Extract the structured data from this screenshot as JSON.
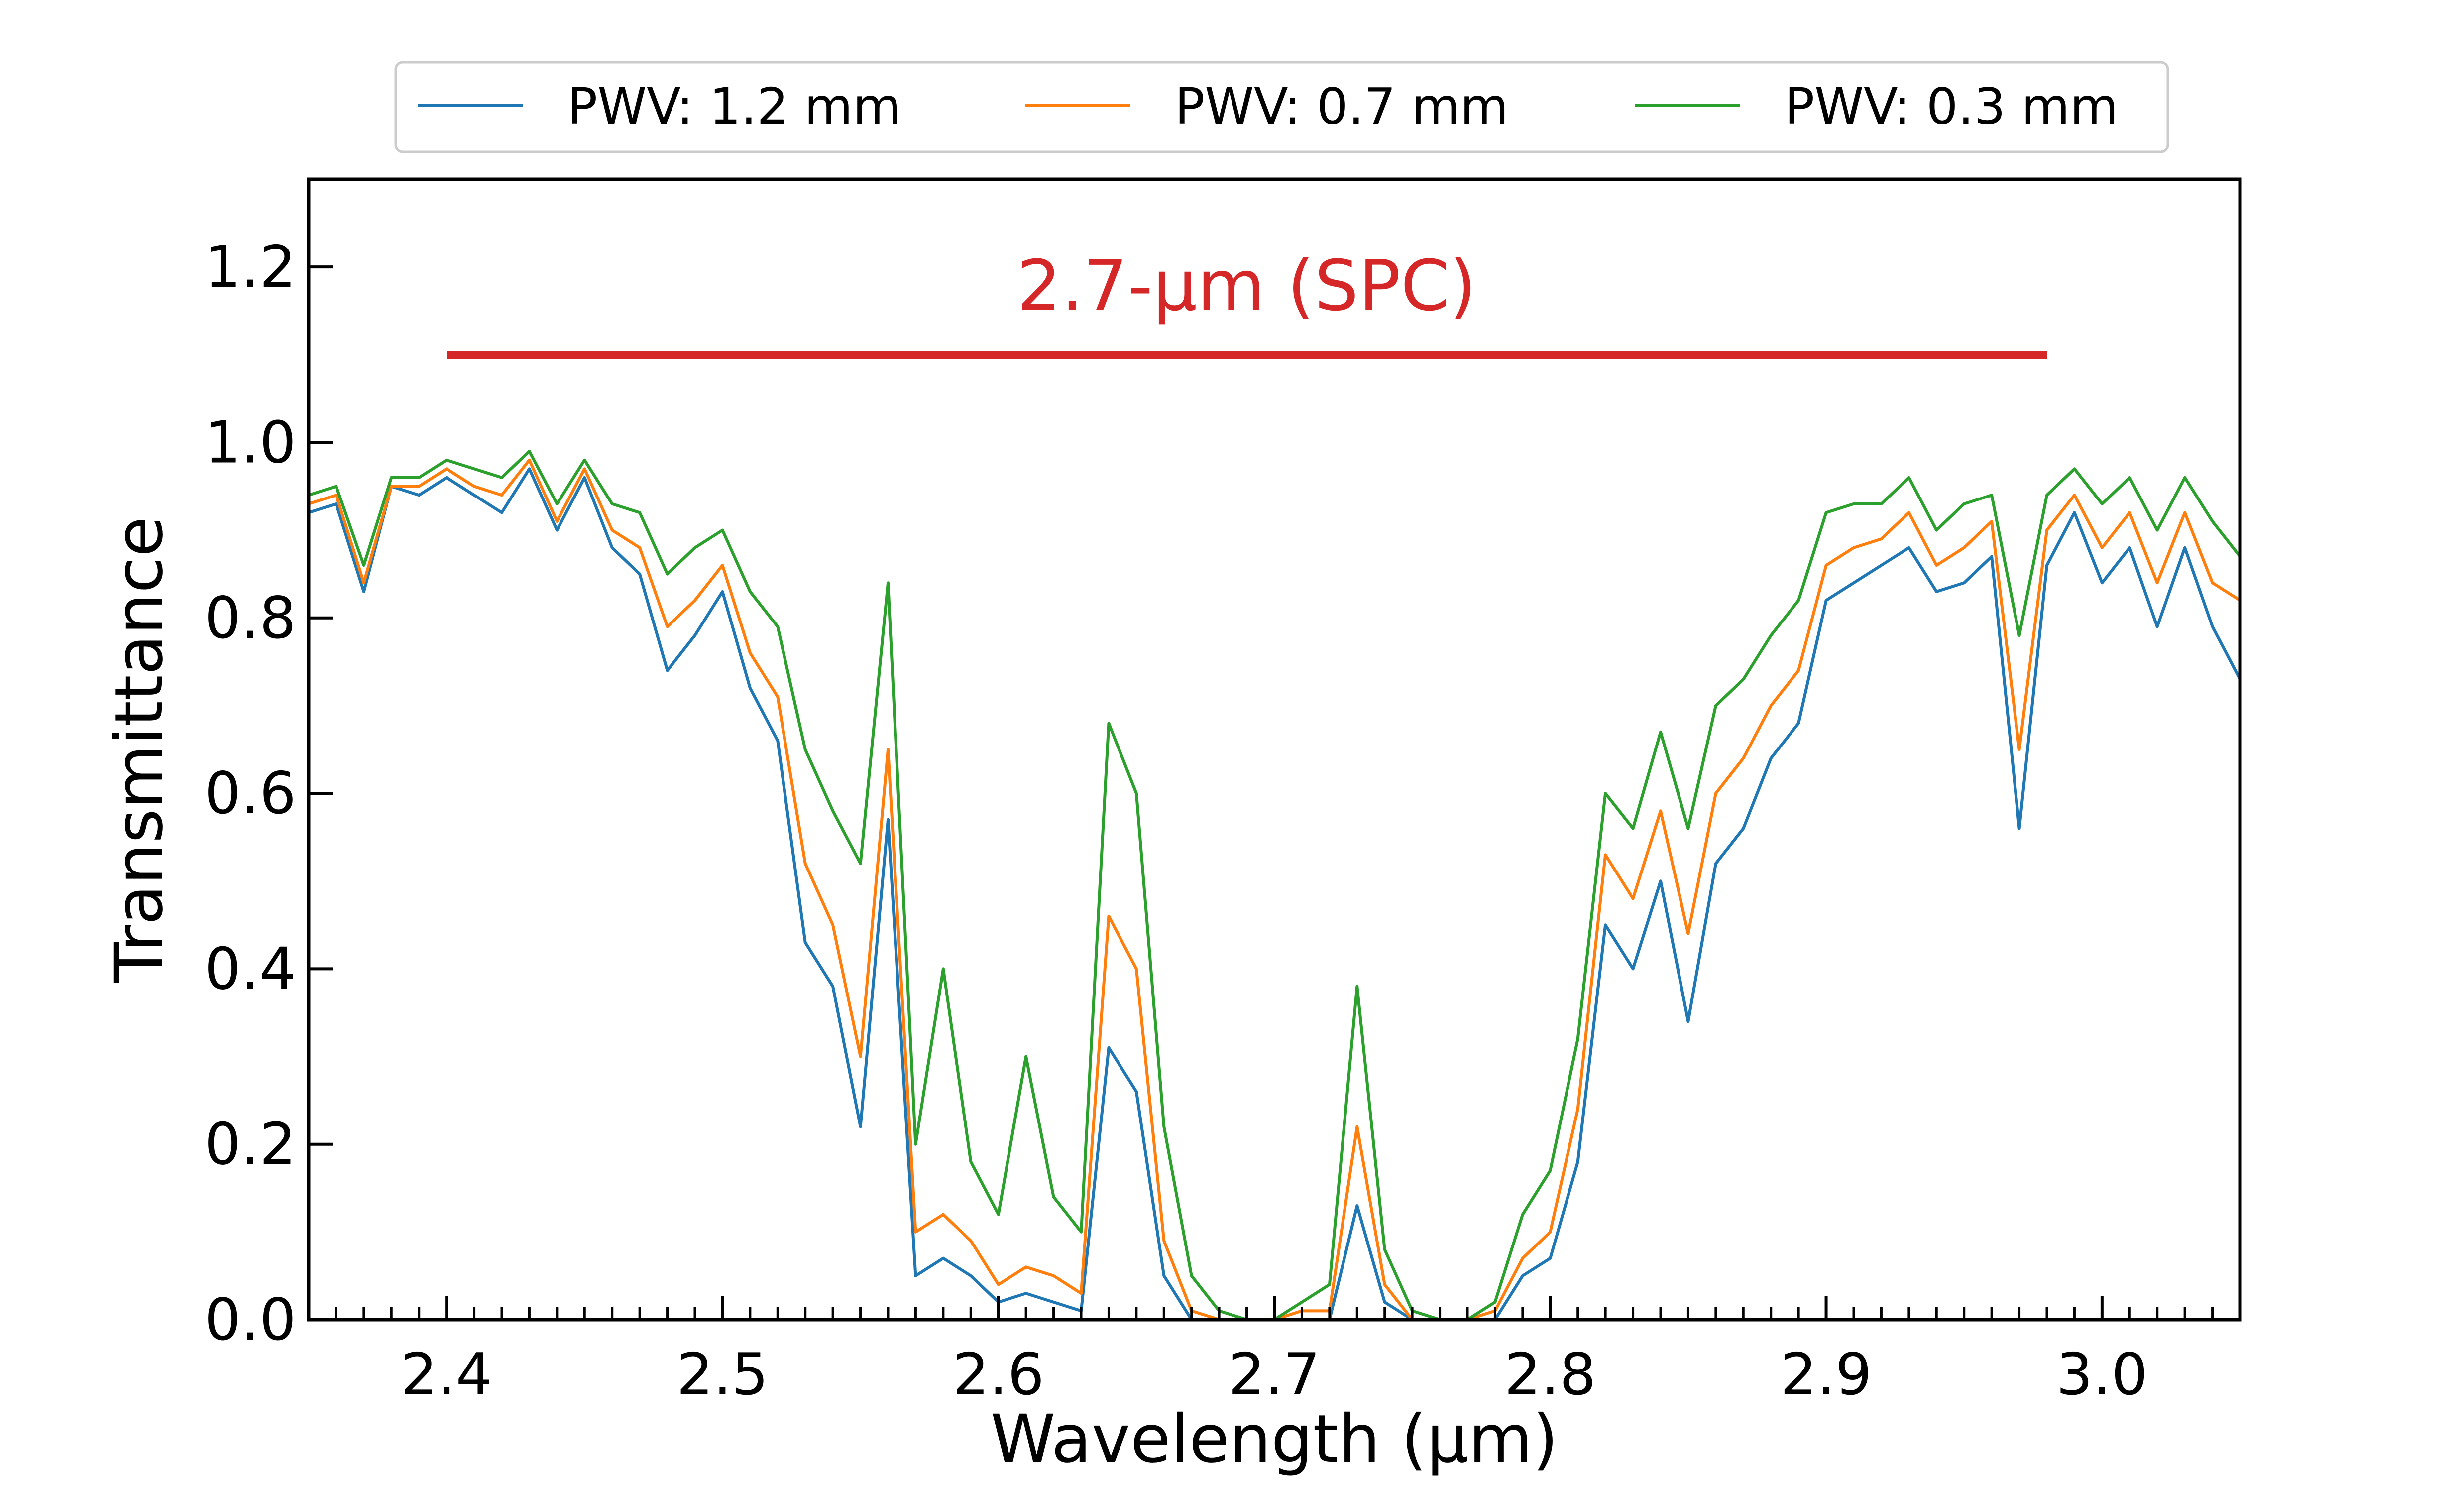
{
  "chart_data": {
    "type": "line",
    "title": "",
    "xlabel": "Wavelength (µm)",
    "ylabel": "Transmittance",
    "xlim": [
      2.35,
      3.05
    ],
    "ylim": [
      0.0,
      1.3
    ],
    "xticks": [
      2.4,
      2.5,
      2.6,
      2.7,
      2.8,
      2.9,
      3.0
    ],
    "xtick_labels": [
      "2.4",
      "2.5",
      "2.6",
      "2.7",
      "2.8",
      "2.9",
      "3.0"
    ],
    "yticks": [
      0.0,
      0.2,
      0.4,
      0.6,
      0.8,
      1.0,
      1.2
    ],
    "ytick_labels": [
      "0.0",
      "0.2",
      "0.4",
      "0.6",
      "0.8",
      "1.0",
      "1.2"
    ],
    "grid": false,
    "legend_position": "top-center, outside the axes, 3 columns",
    "annotation": {
      "text": "2.7-µm (SPC)",
      "x_range": [
        2.4,
        2.98
      ],
      "y": 1.1,
      "color": "#d62728"
    },
    "x": [
      2.35,
      2.36,
      2.37,
      2.38,
      2.39,
      2.4,
      2.41,
      2.42,
      2.43,
      2.44,
      2.45,
      2.46,
      2.47,
      2.48,
      2.49,
      2.5,
      2.51,
      2.52,
      2.53,
      2.54,
      2.55,
      2.56,
      2.57,
      2.58,
      2.59,
      2.6,
      2.61,
      2.62,
      2.63,
      2.64,
      2.65,
      2.66,
      2.67,
      2.68,
      2.69,
      2.7,
      2.71,
      2.72,
      2.73,
      2.74,
      2.75,
      2.76,
      2.77,
      2.78,
      2.79,
      2.8,
      2.81,
      2.82,
      2.83,
      2.84,
      2.85,
      2.86,
      2.87,
      2.88,
      2.89,
      2.9,
      2.91,
      2.92,
      2.93,
      2.94,
      2.95,
      2.96,
      2.97,
      2.98,
      2.99,
      3.0,
      3.01,
      3.02,
      3.03,
      3.04,
      3.05
    ],
    "series": [
      {
        "name": "PWV: 1.2 mm",
        "color": "#1f77b4",
        "values": [
          0.92,
          0.93,
          0.83,
          0.95,
          0.94,
          0.96,
          0.94,
          0.92,
          0.97,
          0.9,
          0.96,
          0.88,
          0.85,
          0.74,
          0.78,
          0.83,
          0.72,
          0.66,
          0.43,
          0.38,
          0.22,
          0.57,
          0.05,
          0.07,
          0.05,
          0.02,
          0.03,
          0.02,
          0.01,
          0.31,
          0.26,
          0.05,
          0.0,
          0.0,
          0.0,
          0.0,
          0.0,
          0.0,
          0.13,
          0.02,
          0.0,
          0.0,
          0.0,
          0.0,
          0.05,
          0.07,
          0.18,
          0.45,
          0.4,
          0.5,
          0.34,
          0.52,
          0.56,
          0.64,
          0.68,
          0.82,
          0.84,
          0.86,
          0.88,
          0.83,
          0.84,
          0.87,
          0.56,
          0.86,
          0.92,
          0.84,
          0.88,
          0.79,
          0.88,
          0.79,
          0.73
        ]
      },
      {
        "name": "PWV: 0.7 mm",
        "color": "#ff7f0e",
        "values": [
          0.93,
          0.94,
          0.84,
          0.95,
          0.95,
          0.97,
          0.95,
          0.94,
          0.98,
          0.91,
          0.97,
          0.9,
          0.88,
          0.79,
          0.82,
          0.86,
          0.76,
          0.71,
          0.52,
          0.45,
          0.3,
          0.65,
          0.1,
          0.12,
          0.09,
          0.04,
          0.06,
          0.05,
          0.03,
          0.46,
          0.4,
          0.09,
          0.01,
          0.0,
          0.0,
          0.0,
          0.01,
          0.01,
          0.22,
          0.04,
          0.0,
          0.0,
          0.0,
          0.01,
          0.07,
          0.1,
          0.24,
          0.53,
          0.48,
          0.58,
          0.44,
          0.6,
          0.64,
          0.7,
          0.74,
          0.86,
          0.88,
          0.89,
          0.92,
          0.86,
          0.88,
          0.91,
          0.65,
          0.9,
          0.94,
          0.88,
          0.92,
          0.84,
          0.92,
          0.84,
          0.82
        ]
      },
      {
        "name": "PWV: 0.3 mm",
        "color": "#2ca02c",
        "values": [
          0.94,
          0.95,
          0.86,
          0.96,
          0.96,
          0.98,
          0.97,
          0.96,
          0.99,
          0.93,
          0.98,
          0.93,
          0.92,
          0.85,
          0.88,
          0.9,
          0.83,
          0.79,
          0.65,
          0.58,
          0.52,
          0.84,
          0.2,
          0.4,
          0.18,
          0.12,
          0.3,
          0.14,
          0.1,
          0.68,
          0.6,
          0.22,
          0.05,
          0.01,
          0.0,
          0.0,
          0.02,
          0.04,
          0.38,
          0.08,
          0.01,
          0.0,
          0.0,
          0.02,
          0.12,
          0.17,
          0.32,
          0.6,
          0.56,
          0.67,
          0.56,
          0.7,
          0.73,
          0.78,
          0.82,
          0.92,
          0.93,
          0.93,
          0.96,
          0.9,
          0.93,
          0.94,
          0.78,
          0.94,
          0.97,
          0.93,
          0.96,
          0.9,
          0.96,
          0.91,
          0.87
        ]
      }
    ]
  }
}
